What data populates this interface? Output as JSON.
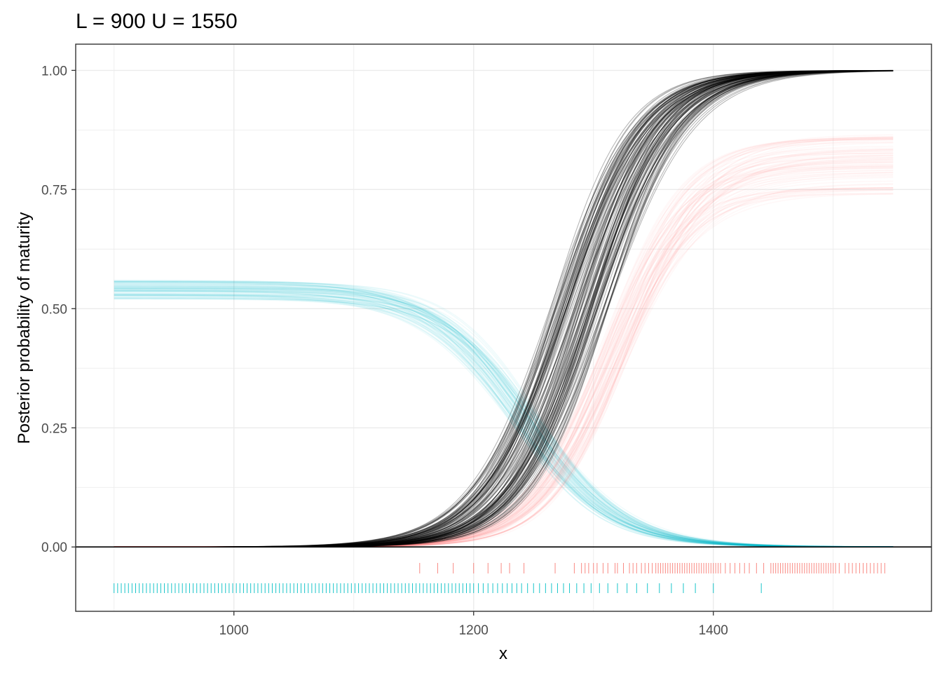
{
  "chart_data": {
    "type": "line",
    "title": "L = 900 U = 1550",
    "xlabel": "x",
    "ylabel": "Posterior probability of maturity",
    "xlim": [
      868,
      1582
    ],
    "ylim": [
      -0.135,
      1.055
    ],
    "x_ticks": [
      1000,
      1200,
      1400
    ],
    "x_tick_labels": [
      "1000",
      "1200",
      "1400"
    ],
    "y_ticks": [
      0,
      0.25,
      0.5,
      0.75,
      1
    ],
    "y_tick_labels": [
      "0.00",
      "0.25",
      "0.50",
      "0.75",
      "1.00"
    ],
    "grid": true,
    "legend": "none",
    "hline_y": 0,
    "x_range": [
      900,
      1550
    ],
    "colors": {
      "black": "#000000",
      "red": "#F8766D",
      "cyan": "#00BFC4",
      "grid": "#ebebeb",
      "border": "#333333"
    },
    "series": [
      {
        "color": "black",
        "curve": "logistic",
        "draws": 120,
        "midpoint_range": [
          1263,
          1313
        ],
        "slope_range": [
          0.027,
          0.033
        ],
        "upper_range": [
          1.0,
          1.0
        ],
        "lower_range": [
          0.0,
          0.0
        ]
      },
      {
        "color": "red",
        "curve": "logistic",
        "draws": 80,
        "midpoint_range": [
          1305,
          1330
        ],
        "slope_range": [
          0.027,
          0.033
        ],
        "upper_range": [
          0.74,
          0.87
        ],
        "lower_range": [
          0.0,
          0.0
        ]
      },
      {
        "color": "cyan",
        "curve": "logistic-decreasing",
        "draws": 80,
        "midpoint_range": [
          1230,
          1255
        ],
        "slope_range": [
          0.024,
          0.028
        ],
        "upper_range": [
          0.52,
          0.56
        ],
        "lower_range": [
          0.0,
          0.0
        ]
      }
    ],
    "rug_red": [
      1155,
      1170,
      1183,
      1200,
      1212,
      1223,
      1230,
      1242,
      1268,
      1284,
      1290,
      1293,
      1296,
      1300,
      1303,
      1308,
      1312,
      1318,
      1320,
      1325,
      1330,
      1333,
      1336,
      1340,
      1343,
      1346,
      1349,
      1352,
      1354,
      1356,
      1358,
      1360,
      1362,
      1364,
      1366,
      1368,
      1370,
      1372,
      1374,
      1376,
      1378,
      1380,
      1382,
      1384,
      1386,
      1388,
      1390,
      1392,
      1394,
      1396,
      1398,
      1400,
      1402,
      1404,
      1406,
      1410,
      1414,
      1418,
      1422,
      1426,
      1430,
      1436,
      1442,
      1448,
      1450,
      1452,
      1454,
      1456,
      1458,
      1460,
      1462,
      1464,
      1466,
      1468,
      1470,
      1472,
      1474,
      1476,
      1478,
      1480,
      1482,
      1484,
      1486,
      1488,
      1490,
      1492,
      1494,
      1496,
      1498,
      1500,
      1502,
      1505,
      1510,
      1513,
      1516,
      1519,
      1522,
      1525,
      1528,
      1531,
      1534,
      1537,
      1540,
      1543
    ],
    "rug_cyan": [
      900,
      903,
      906,
      909,
      912,
      915,
      918,
      921,
      924,
      927,
      930,
      933,
      936,
      939,
      942,
      945,
      948,
      951,
      954,
      957,
      960,
      963,
      966,
      969,
      972,
      975,
      978,
      981,
      984,
      987,
      990,
      993,
      996,
      999,
      1002,
      1005,
      1008,
      1011,
      1014,
      1017,
      1020,
      1023,
      1026,
      1029,
      1032,
      1035,
      1038,
      1041,
      1044,
      1047,
      1050,
      1053,
      1056,
      1059,
      1062,
      1065,
      1068,
      1071,
      1074,
      1077,
      1080,
      1083,
      1086,
      1089,
      1092,
      1095,
      1098,
      1101,
      1104,
      1107,
      1110,
      1113,
      1116,
      1119,
      1122,
      1125,
      1128,
      1131,
      1134,
      1137,
      1140,
      1143,
      1146,
      1149,
      1152,
      1155,
      1158,
      1161,
      1164,
      1167,
      1170,
      1173,
      1176,
      1179,
      1182,
      1185,
      1188,
      1191,
      1194,
      1197,
      1200,
      1204,
      1208,
      1212,
      1216,
      1220,
      1224,
      1228,
      1232,
      1236,
      1240,
      1245,
      1250,
      1255,
      1260,
      1265,
      1270,
      1275,
      1280,
      1286,
      1292,
      1298,
      1305,
      1312,
      1320,
      1328,
      1336,
      1345,
      1355,
      1365,
      1375,
      1385,
      1400,
      1440
    ]
  }
}
